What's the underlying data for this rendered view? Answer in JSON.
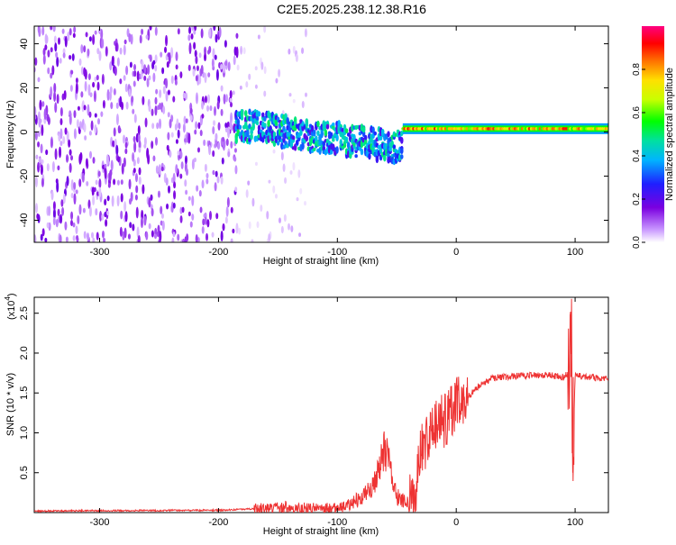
{
  "title": "C2E5.2025.238.12.38.R16",
  "chart_data": [
    {
      "type": "heatmap",
      "xlabel": "Height of straight line (km)",
      "ylabel": "Frequency (Hz)",
      "xlim": [
        -355,
        128
      ],
      "ylim": [
        -50,
        48
      ],
      "xticks": [
        -300,
        -200,
        -100,
        0,
        100
      ],
      "xtick_labels": [
        "-300",
        "-200",
        "-100",
        "0",
        "100"
      ],
      "yticks": [
        -40,
        -20,
        0,
        20,
        40
      ],
      "ytick_labels": [
        "-40",
        "-20",
        "0",
        "20",
        "40"
      ],
      "colorbar": {
        "label": "Normalized spectral amplitude",
        "range": [
          0,
          1
        ],
        "ticks": [
          0.0,
          0.2,
          0.4,
          0.6,
          0.8
        ],
        "tick_labels": [
          "0.0",
          "0.2",
          "0.4",
          "0.6",
          "0.8"
        ],
        "colormap": [
          "#ffffff",
          "#c896ff",
          "#7b00e0",
          "#1f1fff",
          "#00b4ff",
          "#00e0a0",
          "#00ff00",
          "#c8ff00",
          "#ffe000",
          "#ff7000",
          "#ff0000",
          "#ff0080"
        ]
      },
      "regions": [
        {
          "name": "noise",
          "x": [
            -355,
            -185
          ],
          "freq": [
            -50,
            48
          ],
          "amplitude": [
            0.05,
            0.2
          ]
        },
        {
          "name": "sparse-noise",
          "x": [
            -185,
            -125
          ],
          "freq": [
            -50,
            48
          ],
          "amplitude": [
            0.02,
            0.08
          ]
        },
        {
          "name": "signal-onset",
          "x": [
            -185,
            -45
          ],
          "freq_center": [
            3,
            -7
          ],
          "amplitude": [
            0.2,
            0.5
          ]
        },
        {
          "name": "carrier",
          "x": [
            -45,
            128
          ],
          "freq_center": 1.5,
          "amplitude": [
            0.55,
            0.9
          ]
        }
      ]
    },
    {
      "type": "line",
      "xlabel": "Height of straight line (km)",
      "ylabel": "SNR (10 * v/v)",
      "y_multiplier": "(x10",
      "y_multiplier_exp": "4",
      "y_multiplier_close": ")",
      "xlim": [
        -355,
        128
      ],
      "ylim": [
        0,
        2.7
      ],
      "xticks": [
        -300,
        -200,
        -100,
        0,
        100
      ],
      "xtick_labels": [
        "-300",
        "-200",
        "-100",
        "0",
        "100"
      ],
      "yticks": [
        0.5,
        1.0,
        1.5,
        2.0,
        2.5
      ],
      "ytick_labels": [
        "0.5",
        "1.0",
        "1.5",
        "2.0",
        "2.5"
      ],
      "color": "#ee3333",
      "series": [
        {
          "name": "SNR",
          "x": [
            -355,
            -200,
            -160,
            -150,
            -140,
            -120,
            -100,
            -90,
            -80,
            -70,
            -65,
            -60,
            -55,
            -50,
            -45,
            -40,
            -35,
            -30,
            -25,
            -20,
            -15,
            -10,
            -5,
            0,
            10,
            20,
            30,
            40,
            60,
            80,
            90,
            95,
            97,
            98,
            100,
            110,
            128
          ],
          "y": [
            0.02,
            0.03,
            0.05,
            0.08,
            0.06,
            0.05,
            0.05,
            0.1,
            0.18,
            0.35,
            0.55,
            0.8,
            0.55,
            0.2,
            0.15,
            0.12,
            0.2,
            0.75,
            0.9,
            1.0,
            1.1,
            1.15,
            1.25,
            1.35,
            1.45,
            1.6,
            1.68,
            1.7,
            1.72,
            1.72,
            1.7,
            1.75,
            2.3,
            0.5,
            1.72,
            1.7,
            1.68
          ]
        }
      ]
    }
  ]
}
